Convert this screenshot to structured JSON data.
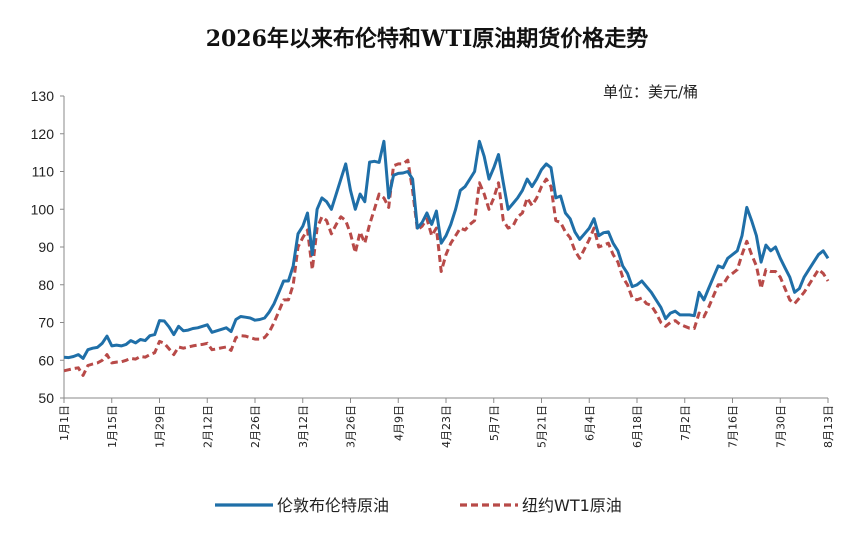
{
  "chart_data": {
    "type": "line",
    "title": "2026年以来布伦特和WTI原油期货价格走势",
    "unit_label": "单位：美元/桶",
    "ylim": [
      50,
      130
    ],
    "yticks": [
      50,
      60,
      70,
      80,
      90,
      100,
      110,
      120,
      130
    ],
    "x_tick_labels": [
      "1月1日",
      "1月15日",
      "1月29日",
      "2月12日",
      "2月26日",
      "3月12日",
      "3月26日",
      "4月9日",
      "4月23日",
      "5月7日",
      "5月21日",
      "6月4日",
      "6月18日",
      "7月2日",
      "7月16日",
      "7月30日",
      "8月13日"
    ],
    "grid": false,
    "legend_position": "bottom",
    "colors": {
      "brent": "#1f6fa8",
      "wti": "#b84a48",
      "axis": "#8a8a8a"
    },
    "series": [
      {
        "name": "伦敦布伦特原油",
        "style": "solid",
        "values": [
          60.8,
          60.7,
          61.0,
          61.5,
          60.5,
          62.8,
          63.2,
          63.4,
          64.5,
          66.4,
          63.8,
          64.0,
          63.8,
          64.2,
          65.2,
          64.6,
          65.5,
          65.2,
          66.5,
          66.8,
          70.5,
          70.4,
          68.8,
          66.8,
          69.0,
          67.8,
          68.0,
          68.4,
          68.6,
          69.0,
          69.4,
          67.4,
          67.8,
          68.2,
          68.6,
          67.6,
          70.8,
          71.6,
          71.4,
          71.2,
          70.6,
          70.8,
          71.2,
          72.8,
          75.0,
          78.0,
          81.0,
          81.0,
          85.0,
          93.5,
          95.5,
          99.0,
          88.0,
          100.0,
          103.0,
          102.0,
          100.0,
          104.0,
          108.0,
          112.0,
          105.0,
          100.0,
          104.0,
          102.0,
          112.5,
          112.7,
          112.4,
          118.0,
          103.0,
          109.0,
          109.5,
          109.6,
          110.0,
          108.0,
          95.0,
          96.5,
          99.0,
          96.0,
          99.5,
          91.0,
          93.0,
          96.0,
          100.0,
          105.0,
          106.0,
          108.0,
          110.0,
          118.0,
          114.0,
          108.0,
          111.0,
          114.5,
          107.0,
          100.0,
          101.5,
          103.0,
          105.0,
          108.0,
          106.0,
          108.0,
          110.5,
          112.0,
          111.0,
          103.0,
          103.5,
          99.0,
          97.5,
          94.0,
          92.0,
          93.5,
          95.0,
          97.5,
          93.0,
          93.8,
          94.0,
          91.0,
          89.0,
          85.0,
          83.0,
          79.5,
          80.0,
          81.0,
          79.5,
          78.0,
          76.0,
          74.0,
          71.0,
          72.5,
          73.0,
          72.0,
          72.0,
          72.0,
          71.8,
          78.0,
          76.0,
          79.0,
          82.0,
          85.0,
          84.5,
          87.0,
          88.0,
          89.0,
          93.0,
          100.5,
          97.0,
          93.0,
          86.0,
          90.5,
          89.0,
          90.0,
          87.0,
          84.5,
          82.0,
          78.0,
          79.0,
          82.0,
          84.0,
          86.0,
          88.0,
          89.0,
          87.0
        ]
      },
      {
        "name": "纽约WT1原油",
        "style": "dashed",
        "values": [
          57.2,
          57.5,
          57.8,
          58.0,
          56.0,
          58.6,
          59.0,
          59.3,
          60.0,
          61.5,
          59.3,
          59.5,
          59.6,
          60.0,
          60.5,
          60.3,
          61.0,
          60.8,
          61.5,
          62.0,
          65.0,
          64.5,
          63.0,
          61.5,
          63.5,
          63.2,
          63.5,
          63.8,
          64.0,
          64.2,
          64.5,
          62.8,
          63.0,
          63.3,
          63.5,
          62.6,
          66.0,
          66.5,
          66.4,
          66.0,
          65.6,
          65.6,
          66.0,
          67.5,
          70.0,
          73.0,
          76.0,
          76.0,
          80.0,
          90.0,
          92.5,
          94.5,
          84.0,
          95.0,
          98.0,
          97.0,
          93.5,
          96.0,
          98.0,
          97.0,
          93.5,
          88.5,
          94.0,
          91.0,
          96.0,
          100.0,
          104.0,
          103.0,
          100.5,
          111.5,
          112.0,
          112.0,
          113.0,
          105.0,
          94.5,
          95.5,
          97.5,
          93.0,
          95.0,
          83.5,
          88.0,
          91.0,
          93.0,
          95.0,
          94.5,
          96.0,
          97.0,
          107.0,
          104.0,
          100.0,
          103.0,
          107.0,
          97.0,
          95.0,
          95.5,
          98.0,
          99.0,
          103.0,
          101.0,
          103.0,
          106.0,
          108.0,
          106.0,
          97.0,
          96.5,
          94.0,
          92.5,
          89.0,
          87.0,
          89.5,
          92.0,
          95.0,
          90.0,
          90.5,
          91.0,
          88.0,
          86.0,
          82.0,
          80.0,
          76.5,
          76.0,
          76.5,
          75.0,
          74.5,
          72.5,
          70.0,
          69.0,
          70.0,
          70.5,
          69.5,
          69.0,
          68.5,
          68.4,
          72.5,
          71.5,
          74.0,
          77.0,
          80.0,
          80.0,
          82.0,
          83.0,
          84.0,
          88.0,
          91.5,
          88.0,
          85.0,
          79.0,
          84.0,
          83.5,
          83.5,
          82.0,
          79.0,
          76.0,
          75.0,
          76.5,
          78.0,
          80.0,
          82.0,
          84.0,
          83.0,
          81.0
        ]
      }
    ]
  }
}
